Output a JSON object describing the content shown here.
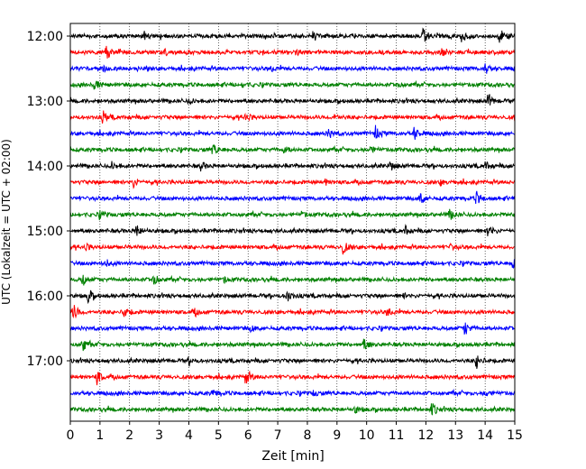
{
  "chart_data": {
    "type": "line",
    "title": "",
    "xlabel": "Zeit  [min]",
    "ylabel": "UTC (Lokalzeit = UTC + 02:00)",
    "xlim": [
      0,
      15
    ],
    "x_ticks": [
      "0",
      "1",
      "2",
      "3",
      "4",
      "5",
      "6",
      "7",
      "8",
      "9",
      "10",
      "11",
      "12",
      "13",
      "14",
      "15"
    ],
    "y_ticks": [
      "12:00",
      "13:00",
      "14:00",
      "15:00",
      "16:00",
      "17:00"
    ],
    "grid": "vertical-dotted",
    "trace_colors": [
      "#000000",
      "#ff0000",
      "#0000ff",
      "#008000"
    ],
    "traces": [
      {
        "start": "12:00",
        "color": "#000000",
        "events": [
          [
            2.5,
            0.4
          ],
          [
            8.2,
            0.6
          ],
          [
            11.9,
            1.0
          ],
          [
            13.2,
            0.6
          ],
          [
            14.5,
            0.9
          ]
        ]
      },
      {
        "start": "12:15",
        "color": "#ff0000",
        "events": [
          [
            1.2,
            0.9
          ],
          [
            3.2,
            0.3
          ],
          [
            7.6,
            0.3
          ],
          [
            12.5,
            0.4
          ]
        ]
      },
      {
        "start": "12:30",
        "color": "#0000ff",
        "events": [
          [
            1.1,
            0.4
          ],
          [
            6.8,
            0.3
          ],
          [
            14.0,
            0.8
          ]
        ]
      },
      {
        "start": "12:45",
        "color": "#008000",
        "events": [
          [
            0.8,
            0.7
          ],
          [
            5.8,
            0.3
          ],
          [
            11.0,
            0.3
          ]
        ]
      },
      {
        "start": "13:00",
        "color": "#000000",
        "events": [
          [
            4.0,
            0.3
          ],
          [
            14.1,
            0.9
          ]
        ]
      },
      {
        "start": "13:15",
        "color": "#ff0000",
        "events": [
          [
            1.1,
            0.8
          ],
          [
            5.9,
            0.5
          ],
          [
            8.9,
            0.4
          ],
          [
            15.0,
            0.4
          ]
        ]
      },
      {
        "start": "13:30",
        "color": "#0000ff",
        "events": [
          [
            8.7,
            0.6
          ],
          [
            10.3,
            0.8
          ],
          [
            11.6,
            0.8
          ]
        ]
      },
      {
        "start": "13:45",
        "color": "#008000",
        "events": [
          [
            4.8,
            0.8
          ],
          [
            7.2,
            0.4
          ],
          [
            10.1,
            0.5
          ]
        ]
      },
      {
        "start": "14:00",
        "color": "#000000",
        "events": [
          [
            1.4,
            0.4
          ],
          [
            4.4,
            0.5
          ],
          [
            10.8,
            0.5
          ],
          [
            14.0,
            0.5
          ]
        ]
      },
      {
        "start": "14:15",
        "color": "#ff0000",
        "events": [
          [
            2.1,
            0.7
          ],
          [
            8.6,
            0.3
          ],
          [
            12.5,
            0.3
          ]
        ]
      },
      {
        "start": "14:30",
        "color": "#0000ff",
        "events": [
          [
            11.8,
            0.9
          ],
          [
            13.7,
            0.8
          ]
        ]
      },
      {
        "start": "14:45",
        "color": "#008000",
        "events": [
          [
            1.0,
            0.4
          ],
          [
            7.8,
            0.3
          ],
          [
            12.8,
            0.6
          ]
        ]
      },
      {
        "start": "15:00",
        "color": "#000000",
        "events": [
          [
            2.2,
            0.9
          ],
          [
            11.3,
            0.6
          ],
          [
            14.1,
            0.9
          ]
        ]
      },
      {
        "start": "15:15",
        "color": "#ff0000",
        "events": [
          [
            0.5,
            0.4
          ],
          [
            9.2,
            0.8
          ],
          [
            12.8,
            0.3
          ]
        ]
      },
      {
        "start": "15:30",
        "color": "#0000ff",
        "events": [
          [
            1.2,
            0.4
          ],
          [
            14.9,
            0.9
          ]
        ]
      },
      {
        "start": "15:45",
        "color": "#008000",
        "events": [
          [
            0.4,
            0.8
          ],
          [
            2.8,
            0.8
          ],
          [
            5.2,
            0.3
          ]
        ]
      },
      {
        "start": "16:00",
        "color": "#000000",
        "events": [
          [
            0.6,
            0.9
          ],
          [
            7.3,
            0.9
          ],
          [
            11.2,
            0.3
          ]
        ]
      },
      {
        "start": "16:15",
        "color": "#ff0000",
        "events": [
          [
            0.1,
            1.0
          ],
          [
            1.8,
            0.9
          ],
          [
            4.2,
            0.3
          ],
          [
            10.7,
            0.5
          ]
        ]
      },
      {
        "start": "16:30",
        "color": "#0000ff",
        "events": [
          [
            6.1,
            0.4
          ],
          [
            13.3,
            0.9
          ]
        ]
      },
      {
        "start": "16:45",
        "color": "#008000",
        "events": [
          [
            0.4,
            0.9
          ],
          [
            9.9,
            0.8
          ]
        ]
      },
      {
        "start": "17:00",
        "color": "#000000",
        "events": [
          [
            4.0,
            0.3
          ],
          [
            13.7,
            0.9
          ]
        ]
      },
      {
        "start": "17:15",
        "color": "#ff0000",
        "events": [
          [
            0.9,
            0.8
          ],
          [
            5.9,
            1.0
          ]
        ]
      },
      {
        "start": "17:30",
        "color": "#0000ff",
        "events": [
          [
            4.8,
            0.4
          ],
          [
            8.2,
            0.3
          ],
          [
            14.0,
            0.4
          ]
        ]
      },
      {
        "start": "17:45",
        "color": "#008000",
        "events": [
          [
            9.6,
            0.4
          ],
          [
            12.2,
            0.8
          ]
        ]
      }
    ]
  }
}
